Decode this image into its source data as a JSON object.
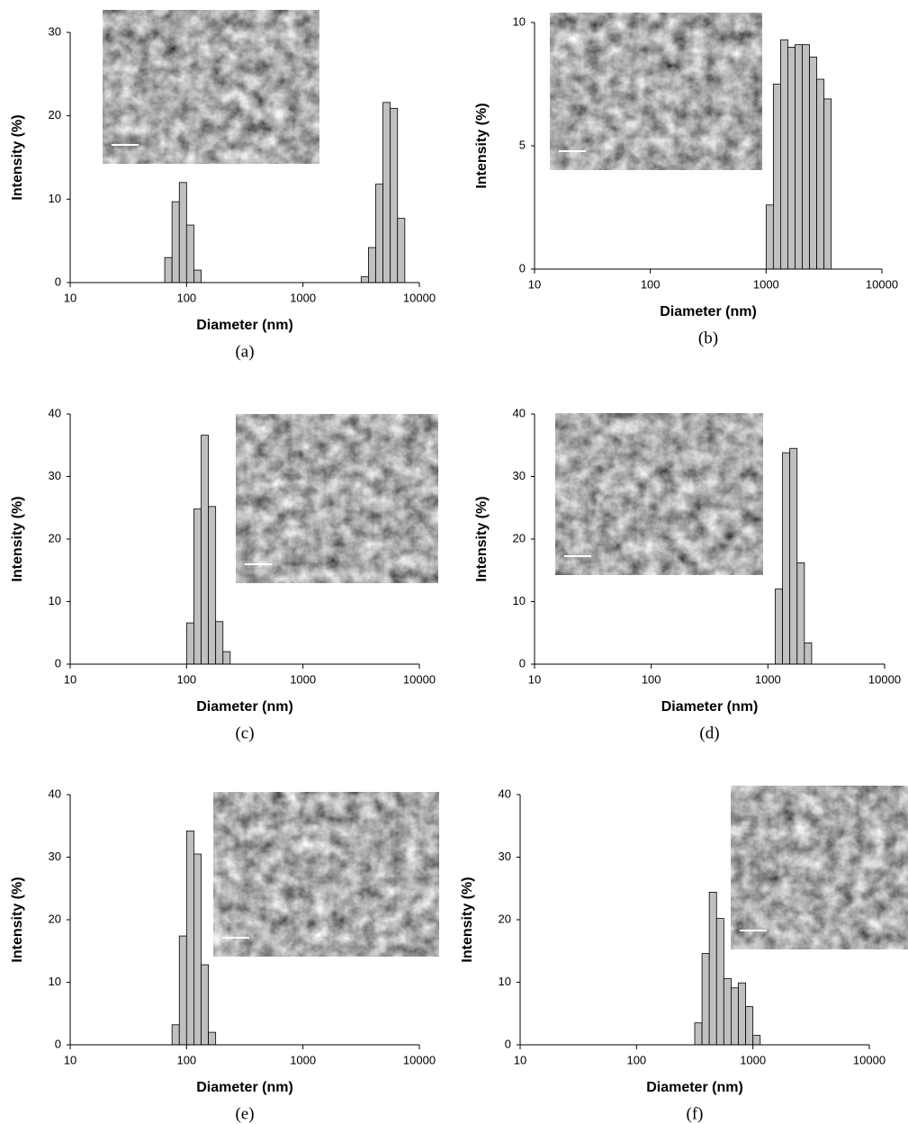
{
  "chart_data": [
    {
      "type": "histogram",
      "xscale": "log",
      "xlabel": "Diameter (nm)",
      "ylabel": "Intensity (%)",
      "caption": "(a)",
      "color": "#c0c0c0",
      "xlim": [
        10,
        10000
      ],
      "xticks": [
        10,
        100,
        1000,
        10000
      ],
      "ylim": [
        0,
        30
      ],
      "yticks": [
        0,
        10,
        20,
        30
      ],
      "bins": [
        64.9,
        75,
        86.6,
        100,
        115.5,
        133.4,
        154,
        177.8,
        205.4,
        237.1,
        273.8,
        316.2,
        365.2,
        421.7,
        487,
        562.3,
        649.4,
        749.9,
        866,
        1000,
        1154.8,
        1333.5,
        1539.9,
        1778.3,
        2053.5,
        2371.4,
        2738.4,
        3162.3,
        3651.7,
        4217,
        4869.7,
        5623.4,
        6493.8,
        7498.9
      ],
      "values": [
        3,
        9.7,
        12,
        6.9,
        1.5,
        0,
        0,
        0,
        0,
        0,
        0,
        0,
        0,
        0,
        0,
        0,
        0,
        0,
        0,
        0,
        0,
        0,
        0,
        0,
        0,
        0,
        0,
        0.7,
        4.2,
        11.8,
        21.6,
        20.9,
        7.7
      ]
    },
    {
      "type": "histogram",
      "xscale": "log",
      "xlabel": "Diameter (nm)",
      "ylabel": "Intensity (%)",
      "caption": "(b)",
      "color": "#c0c0c0",
      "xlim": [
        10,
        10000
      ],
      "xticks": [
        10,
        100,
        1000,
        10000
      ],
      "ylim": [
        0,
        10
      ],
      "yticks": [
        0,
        5,
        10
      ],
      "bins": [
        1000,
        1154.8,
        1333.5,
        1539.9,
        1778.3,
        2053.5,
        2371.4,
        2738.4,
        3162.3,
        3651.7
      ],
      "values": [
        2.6,
        7.5,
        9.3,
        9.0,
        9.1,
        9.1,
        8.6,
        7.7,
        6.9
      ]
    },
    {
      "type": "histogram",
      "xscale": "log",
      "xlabel": "Diameter (nm)",
      "ylabel": "Intensity (%)",
      "caption": "(c)",
      "color": "#c0c0c0",
      "xlim": [
        10,
        10000
      ],
      "xticks": [
        10,
        100,
        1000,
        10000
      ],
      "ylim": [
        0,
        40
      ],
      "yticks": [
        0,
        10,
        20,
        30,
        40
      ],
      "bins": [
        100,
        115.5,
        133.4,
        154,
        177.8,
        205.4,
        237.1
      ],
      "values": [
        6.6,
        24.8,
        36.6,
        25.2,
        6.8,
        2.0
      ]
    },
    {
      "type": "histogram",
      "xscale": "log",
      "xlabel": "Diameter (nm)",
      "ylabel": "Intensity (%)",
      "caption": "(d)",
      "color": "#c0c0c0",
      "xlim": [
        10,
        10000
      ],
      "xticks": [
        10,
        100,
        1000,
        10000
      ],
      "ylim": [
        0,
        40
      ],
      "yticks": [
        0,
        10,
        20,
        30,
        40
      ],
      "bins": [
        1154.8,
        1333.5,
        1539.9,
        1778.3,
        2053.5,
        2371.4
      ],
      "values": [
        12,
        33.8,
        34.5,
        16.2,
        3.4
      ]
    },
    {
      "type": "histogram",
      "xscale": "log",
      "xlabel": "Diameter (nm)",
      "ylabel": "Intensity (%)",
      "caption": "(e)",
      "color": "#c0c0c0",
      "xlim": [
        10,
        10000
      ],
      "xticks": [
        10,
        100,
        1000,
        10000
      ],
      "ylim": [
        0,
        40
      ],
      "yticks": [
        0,
        10,
        20,
        30,
        40
      ],
      "bins": [
        75,
        86.6,
        100,
        115.5,
        133.4,
        154,
        177.8
      ],
      "values": [
        3.2,
        17.4,
        34.2,
        30.5,
        12.8,
        2.0
      ]
    },
    {
      "type": "histogram",
      "xscale": "log",
      "xlabel": "Diameter (nm)",
      "ylabel": "Intensity (%)",
      "caption": "(f)",
      "color": "#c0c0c0",
      "xlim": [
        10,
        10000
      ],
      "xticks": [
        10,
        100,
        1000,
        10000
      ],
      "ylim": [
        0,
        40
      ],
      "yticks": [
        0,
        10,
        20,
        30,
        40
      ],
      "bins": [
        316.2,
        365.2,
        421.7,
        487,
        562.3,
        649.4,
        749.9,
        866,
        1000,
        1154.8
      ],
      "values": [
        3.5,
        14.6,
        24.4,
        20.2,
        10.6,
        9.1,
        9.9,
        6.1,
        1.5
      ]
    }
  ]
}
